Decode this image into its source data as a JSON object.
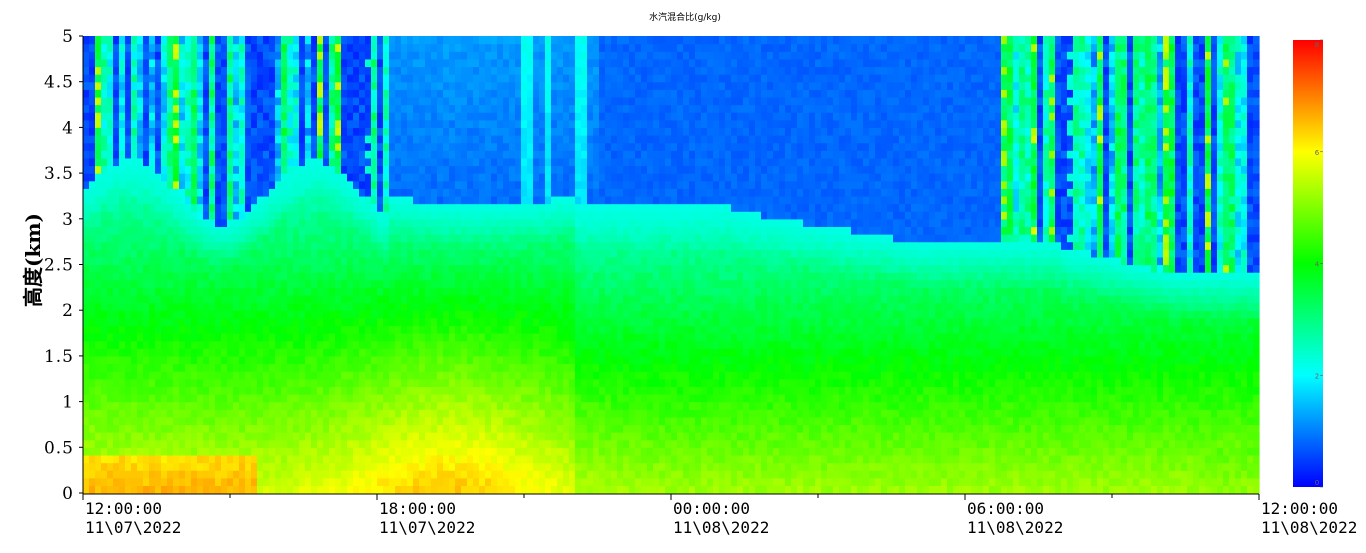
{
  "chart_data": {
    "type": "heatmap",
    "title": "水汽混合比(g/kg)",
    "xlabel": "",
    "ylabel": "高度(km)",
    "ylim": [
      0,
      5
    ],
    "yticks": [
      "0",
      "0.5",
      "1",
      "1.5",
      "2",
      "2.5",
      "3",
      "3.5",
      "4",
      "4.5",
      "5"
    ],
    "xticks": [
      {
        "time": "12:00:00",
        "date": "11\\07\\2022"
      },
      {
        "time": "18:00:00",
        "date": "11\\07\\2022"
      },
      {
        "time": "00:00:00",
        "date": "11\\08\\2022"
      },
      {
        "time": "06:00:00",
        "date": "11\\08\\2022"
      },
      {
        "time": "12:00:00",
        "date": "11\\08\\2022"
      }
    ],
    "colorbar": {
      "range": [
        0,
        8
      ],
      "ticks": [
        "0",
        "2",
        "4",
        "6",
        "8"
      ],
      "colormap": [
        "#0000ff",
        "#00ffff",
        "#00ff00",
        "#ffff00",
        "#ff0000"
      ]
    }
  }
}
